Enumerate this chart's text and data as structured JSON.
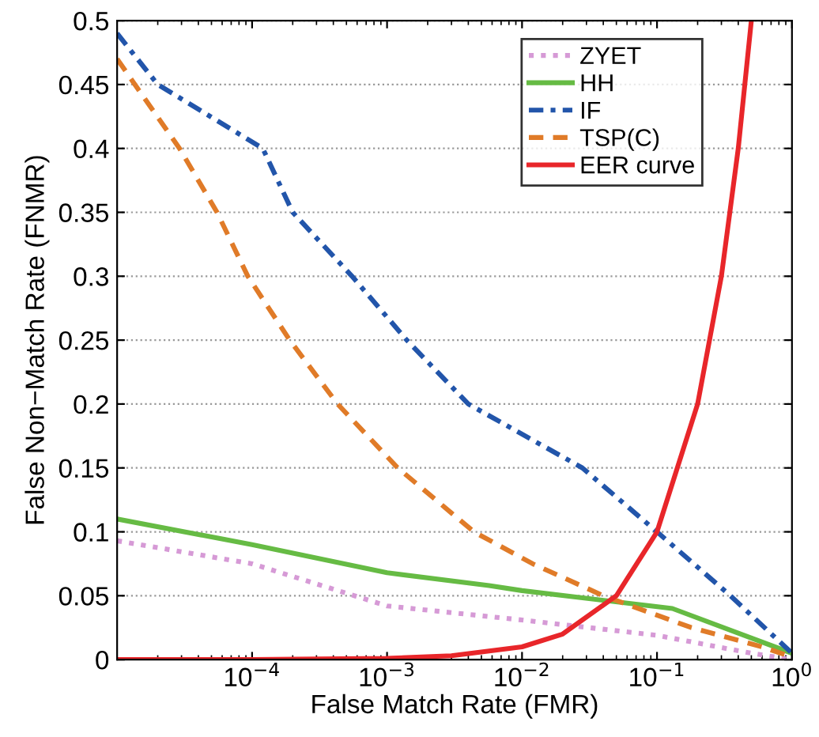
{
  "chart_data": {
    "type": "line",
    "xlabel": "False Match Rate (FMR)",
    "ylabel": "False Non−Match Rate (FNMR)",
    "log": "x",
    "xlim": [
      1e-05,
      1
    ],
    "ylim": [
      0,
      0.5
    ],
    "xticks": [
      {
        "value": 0.0001,
        "label": "10$^{−4}$"
      },
      {
        "value": 0.001,
        "label": "10$^{−3}$"
      },
      {
        "value": 0.01,
        "label": "10$^{−2}$"
      },
      {
        "value": 0.1,
        "label": "10$^{−1}$"
      },
      {
        "value": 1,
        "label": "10$^{0}$"
      }
    ],
    "yticks": [
      0,
      0.05,
      0.1,
      0.15,
      0.2,
      0.25,
      0.3,
      0.35,
      0.4,
      0.45,
      0.5
    ],
    "grid": "y",
    "legend": "top right",
    "marker": "none",
    "series": [
      {
        "name": "ZYET",
        "color": "#d69ad6",
        "line_style": "dotted",
        "x": [
          1e-05,
          0.0001,
          0.001,
          0.01,
          0.1,
          0.5,
          1
        ],
        "values": [
          0.093,
          0.075,
          0.042,
          0.031,
          0.019,
          0.005,
          0
        ]
      },
      {
        "name": "HH",
        "color": "#66bb44",
        "line_style": "solid",
        "x": [
          1e-05,
          0.0001,
          0.001,
          0.0057,
          0.01,
          0.13,
          1
        ],
        "values": [
          0.11,
          0.09,
          0.068,
          0.058,
          0.054,
          0.04,
          0.005
        ]
      },
      {
        "name": "IF",
        "color": "#2255aa",
        "line_style": "dashdot",
        "x": [
          1e-05,
          2e-05,
          0.00012,
          0.0002,
          0.00055,
          0.0014,
          0.004,
          0.028,
          0.1,
          0.35,
          1
        ],
        "values": [
          0.49,
          0.45,
          0.4,
          0.35,
          0.3,
          0.25,
          0.2,
          0.15,
          0.1,
          0.05,
          0.005
        ]
      },
      {
        "name": "TSP(C)",
        "color": "#e07b28",
        "line_style": "dashed",
        "x": [
          1e-05,
          2.9e-05,
          5.5e-05,
          9.3e-05,
          0.00019,
          0.00043,
          0.0012,
          0.0044,
          0.012,
          0.04,
          0.18,
          0.6,
          1
        ],
        "values": [
          0.47,
          0.4,
          0.35,
          0.3,
          0.25,
          0.2,
          0.15,
          0.1,
          0.075,
          0.05,
          0.025,
          0.01,
          0.002
        ]
      },
      {
        "name": "EER curve",
        "color": "#e8262a",
        "line_style": "solid",
        "x": [
          1e-05,
          0.0001,
          0.001,
          0.003,
          0.01,
          0.02,
          0.05,
          0.1,
          0.2,
          0.3,
          0.4,
          0.5
        ],
        "values": [
          0,
          0,
          0.001,
          0.003,
          0.01,
          0.02,
          0.05,
          0.1,
          0.2,
          0.3,
          0.4,
          0.5
        ]
      }
    ]
  }
}
